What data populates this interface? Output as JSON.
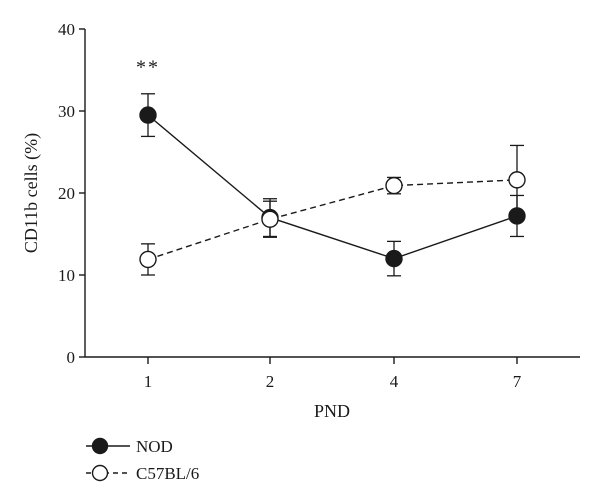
{
  "chart_data": {
    "type": "line",
    "title": "",
    "xlabel": "PND",
    "ylabel": "CD11b cells (%)",
    "categories": [
      "1",
      "2",
      "4",
      "7"
    ],
    "yticks": [
      0,
      10,
      20,
      30,
      40
    ],
    "ylim": [
      0,
      40
    ],
    "grid": false,
    "legend_position": "bottom-left",
    "series": [
      {
        "name": "NOD",
        "marker": "filled-circle",
        "line_style": "solid",
        "values": [
          29.5,
          17.0,
          12.0,
          17.2
        ],
        "errors": [
          2.6,
          2.3,
          2.1,
          2.5
        ]
      },
      {
        "name": "C57BL/6",
        "marker": "open-circle",
        "line_style": "dashed",
        "values": [
          11.9,
          16.8,
          20.9,
          21.6
        ],
        "errors": [
          1.9,
          2.2,
          1.0,
          4.2
        ]
      }
    ],
    "annotations": [
      {
        "text": "**",
        "category": "1",
        "value": 34.6
      }
    ],
    "colors": {
      "line": "#1a1a1a",
      "marker_fill": "#1a1a1a",
      "open_fill": "#ffffff"
    }
  }
}
